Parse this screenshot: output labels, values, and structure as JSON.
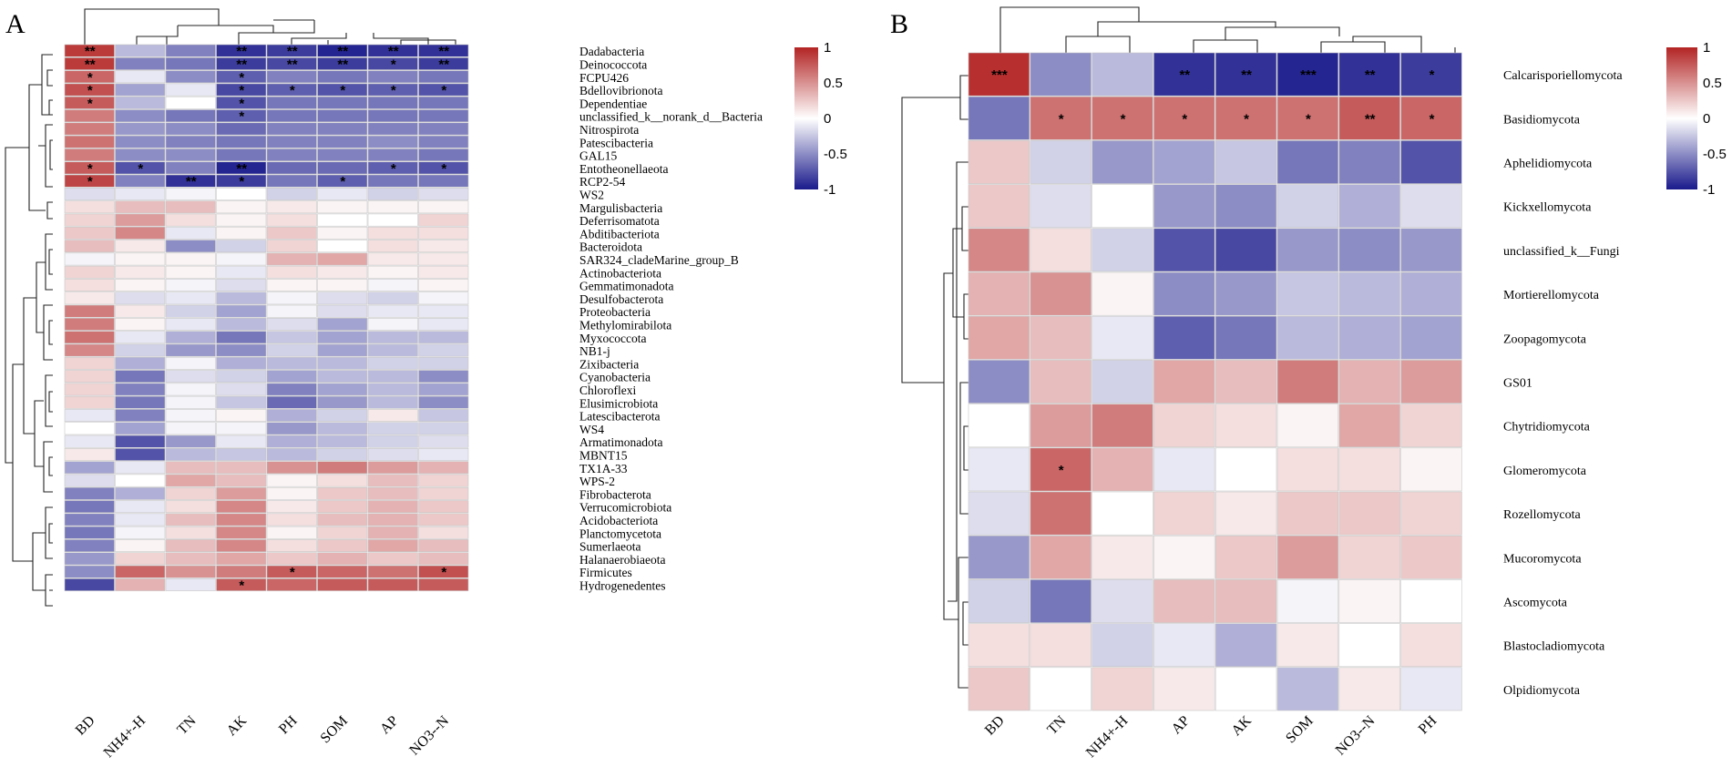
{
  "chart_data": [
    {
      "type": "heatmap",
      "panel_label": "A",
      "columns": [
        "BD",
        "NH4+-H",
        "TN",
        "AK",
        "PH",
        "SOM",
        "AP",
        "NO3--N"
      ],
      "rows": [
        "Dadabacteria",
        "Deinococcota",
        "FCPU426",
        "Bdellovibrionota",
        "Dependentiae",
        "unclassified_k__norank_d__Bacteria",
        "Nitrospirota",
        "Patescibacteria",
        "GAL15",
        "Entotheonellaeota",
        "RCP2-54",
        "WS2",
        "Margulisbacteria",
        "Deferrisomatota",
        "Abditibacteriota",
        "Bacteroidota",
        "SAR324_cladeMarine_group_B",
        "Actinobacteriota",
        "Gemmatimonadota",
        "Desulfobacterota",
        "Proteobacteria",
        "Methylomirabilota",
        "Myxococcota",
        "NB1-j",
        "Zixibacteria",
        "Cyanobacteria",
        "Chloroflexi",
        "Elusimicrobiota",
        "Latescibacterota",
        "WS4",
        "Armatimonadota",
        "MBNT15",
        "TX1A-33",
        "WPS-2",
        "Fibrobacterota",
        "Verrucomicrobiota",
        "Acidobacteriota",
        "Planctomycetota",
        "Sumerlaeota",
        "Halanaerobiaeota",
        "Firmicutes",
        "Hydrogenedentes"
      ],
      "values": [
        [
          0.9,
          -0.3,
          -0.55,
          -0.9,
          -0.85,
          -0.95,
          -0.9,
          -0.9
        ],
        [
          0.9,
          -0.55,
          -0.6,
          -0.85,
          -0.8,
          -0.85,
          -0.8,
          -0.85
        ],
        [
          0.7,
          -0.1,
          -0.5,
          -0.7,
          -0.55,
          -0.6,
          -0.55,
          -0.6
        ],
        [
          0.8,
          -0.4,
          -0.1,
          -0.8,
          -0.7,
          -0.75,
          -0.7,
          -0.75
        ],
        [
          0.75,
          -0.3,
          0.0,
          -0.75,
          -0.6,
          -0.6,
          -0.6,
          -0.6
        ],
        [
          0.6,
          -0.5,
          -0.6,
          -0.7,
          -0.6,
          -0.6,
          -0.6,
          -0.6
        ],
        [
          0.6,
          -0.45,
          -0.5,
          -0.65,
          -0.55,
          -0.55,
          -0.55,
          -0.55
        ],
        [
          0.65,
          -0.5,
          -0.55,
          -0.6,
          -0.55,
          -0.55,
          -0.5,
          -0.55
        ],
        [
          0.6,
          -0.5,
          -0.5,
          -0.6,
          -0.55,
          -0.55,
          -0.55,
          -0.6
        ],
        [
          0.75,
          -0.75,
          -0.55,
          -0.95,
          -0.65,
          -0.65,
          -0.7,
          -0.75
        ],
        [
          0.85,
          -0.55,
          -0.9,
          -0.85,
          -0.6,
          -0.7,
          -0.6,
          -0.6
        ],
        [
          -0.15,
          -0.1,
          -0.05,
          0.0,
          -0.2,
          -0.1,
          -0.2,
          -0.15
        ],
        [
          0.15,
          0.3,
          0.3,
          0.05,
          0.1,
          0.05,
          0.05,
          0.05
        ],
        [
          0.2,
          0.45,
          0.15,
          0.05,
          0.15,
          0.0,
          0.0,
          0.2
        ],
        [
          0.25,
          0.55,
          -0.1,
          0.05,
          0.25,
          0.05,
          0.15,
          0.15
        ],
        [
          0.3,
          0.1,
          -0.5,
          -0.2,
          0.2,
          0.0,
          0.15,
          0.1
        ],
        [
          -0.05,
          0.05,
          0.05,
          -0.05,
          0.35,
          0.4,
          0.1,
          0.1
        ],
        [
          0.2,
          0.1,
          0.05,
          -0.1,
          0.15,
          0.1,
          0.05,
          0.1
        ],
        [
          0.15,
          0.05,
          -0.05,
          -0.15,
          0.05,
          0.05,
          -0.05,
          0.05
        ],
        [
          0.1,
          -0.15,
          -0.1,
          -0.3,
          -0.05,
          -0.15,
          -0.2,
          -0.05
        ],
        [
          0.6,
          0.1,
          -0.2,
          -0.4,
          -0.05,
          -0.15,
          -0.1,
          -0.1
        ],
        [
          0.6,
          0.05,
          -0.1,
          -0.3,
          -0.15,
          -0.4,
          -0.05,
          -0.1
        ],
        [
          0.65,
          -0.1,
          -0.35,
          -0.6,
          -0.25,
          -0.4,
          -0.3,
          -0.3
        ],
        [
          0.55,
          -0.2,
          -0.45,
          -0.5,
          -0.2,
          -0.4,
          -0.3,
          -0.2
        ],
        [
          0.2,
          -0.35,
          -0.05,
          -0.35,
          -0.3,
          -0.3,
          -0.2,
          -0.2
        ],
        [
          0.2,
          -0.6,
          -0.15,
          -0.2,
          -0.4,
          -0.3,
          -0.3,
          -0.5
        ],
        [
          0.2,
          -0.55,
          -0.05,
          -0.15,
          -0.55,
          -0.4,
          -0.3,
          -0.4
        ],
        [
          0.2,
          -0.6,
          -0.05,
          -0.25,
          -0.65,
          -0.45,
          -0.3,
          -0.5
        ],
        [
          -0.1,
          -0.55,
          -0.05,
          0.05,
          -0.35,
          -0.2,
          0.1,
          -0.25
        ],
        [
          0.0,
          -0.4,
          -0.05,
          -0.05,
          -0.45,
          -0.3,
          -0.2,
          -0.2
        ],
        [
          -0.1,
          -0.75,
          -0.45,
          -0.1,
          -0.35,
          -0.3,
          -0.2,
          -0.15
        ],
        [
          0.1,
          -0.75,
          -0.3,
          -0.25,
          -0.3,
          -0.2,
          -0.15,
          -0.1
        ],
        [
          -0.4,
          -0.1,
          0.3,
          0.3,
          0.5,
          0.6,
          0.45,
          0.35
        ],
        [
          -0.15,
          0.0,
          0.4,
          0.3,
          0.05,
          0.15,
          0.3,
          0.2
        ],
        [
          -0.55,
          -0.35,
          0.2,
          0.45,
          0.05,
          0.25,
          0.3,
          0.2
        ],
        [
          -0.6,
          -0.1,
          0.15,
          0.55,
          0.1,
          0.25,
          0.35,
          0.25
        ],
        [
          -0.55,
          -0.1,
          0.3,
          0.55,
          0.15,
          0.3,
          0.35,
          0.25
        ],
        [
          -0.6,
          -0.05,
          0.15,
          0.55,
          0.05,
          0.2,
          0.35,
          0.15
        ],
        [
          -0.55,
          0.05,
          0.3,
          0.55,
          0.15,
          0.25,
          0.4,
          0.3
        ],
        [
          -0.45,
          0.2,
          0.3,
          0.4,
          0.25,
          0.35,
          0.25,
          0.3
        ],
        [
          -0.5,
          0.7,
          0.5,
          0.6,
          0.75,
          0.7,
          0.65,
          0.8
        ],
        [
          -0.8,
          0.35,
          -0.1,
          0.75,
          0.7,
          0.75,
          0.75,
          0.75
        ]
      ],
      "significance": [
        [
          "**",
          "",
          "",
          "**",
          "**",
          "**",
          "**",
          "**"
        ],
        [
          "**",
          "",
          "",
          "**",
          "**",
          "**",
          "*",
          "**"
        ],
        [
          "*",
          "",
          "",
          "*",
          "",
          "",
          "",
          ""
        ],
        [
          "*",
          "",
          "",
          "*",
          "*",
          "*",
          "*",
          "*"
        ],
        [
          "*",
          "",
          "",
          "*",
          "",
          "",
          "",
          ""
        ],
        [
          "",
          "",
          "",
          "*",
          "",
          "",
          "",
          ""
        ],
        [
          "",
          "",
          "",
          "",
          "",
          "",
          "",
          ""
        ],
        [
          "",
          "",
          "",
          "",
          "",
          "",
          "",
          ""
        ],
        [
          "",
          "",
          "",
          "",
          "",
          "",
          "",
          ""
        ],
        [
          "*",
          "*",
          "",
          "**",
          "",
          "",
          "*",
          "*"
        ],
        [
          "*",
          "",
          "**",
          "*",
          "",
          "*",
          "",
          ""
        ],
        [
          "",
          "",
          "",
          "",
          "",
          "",
          "",
          ""
        ],
        [
          "",
          "",
          "",
          "",
          "",
          "",
          "",
          ""
        ],
        [
          "",
          "",
          "",
          "",
          "",
          "",
          "",
          ""
        ],
        [
          "",
          "",
          "",
          "",
          "",
          "",
          "",
          ""
        ],
        [
          "",
          "",
          "",
          "",
          "",
          "",
          "",
          ""
        ],
        [
          "",
          "",
          "",
          "",
          "",
          "",
          "",
          ""
        ],
        [
          "",
          "",
          "",
          "",
          "",
          "",
          "",
          ""
        ],
        [
          "",
          "",
          "",
          "",
          "",
          "",
          "",
          ""
        ],
        [
          "",
          "",
          "",
          "",
          "",
          "",
          "",
          ""
        ],
        [
          "",
          "",
          "",
          "",
          "",
          "",
          "",
          ""
        ],
        [
          "",
          "",
          "",
          "",
          "",
          "",
          "",
          ""
        ],
        [
          "",
          "",
          "",
          "",
          "",
          "",
          "",
          ""
        ],
        [
          "",
          "",
          "",
          "",
          "",
          "",
          "",
          ""
        ],
        [
          "",
          "",
          "",
          "",
          "",
          "",
          "",
          ""
        ],
        [
          "",
          "",
          "",
          "",
          "",
          "",
          "",
          ""
        ],
        [
          "",
          "",
          "",
          "",
          "",
          "",
          "",
          ""
        ],
        [
          "",
          "",
          "",
          "",
          "",
          "",
          "",
          ""
        ],
        [
          "",
          "",
          "",
          "",
          "",
          "",
          "",
          ""
        ],
        [
          "",
          "",
          "",
          "",
          "",
          "",
          "",
          ""
        ],
        [
          "",
          "",
          "",
          "",
          "",
          "",
          "",
          ""
        ],
        [
          "",
          "",
          "",
          "",
          "",
          "",
          "",
          ""
        ],
        [
          "",
          "",
          "",
          "",
          "",
          "",
          "",
          ""
        ],
        [
          "",
          "",
          "",
          "",
          "",
          "",
          "",
          ""
        ],
        [
          "",
          "",
          "",
          "",
          "",
          "",
          "",
          ""
        ],
        [
          "",
          "",
          "",
          "",
          "",
          "",
          "",
          ""
        ],
        [
          "",
          "",
          "",
          "",
          "",
          "",
          "",
          ""
        ],
        [
          "",
          "",
          "",
          "",
          "",
          "",
          "",
          ""
        ],
        [
          "",
          "",
          "",
          "",
          "",
          "",
          "",
          ""
        ],
        [
          "",
          "",
          "",
          "",
          "",
          "",
          "",
          ""
        ],
        [
          "",
          "",
          "",
          "",
          "*",
          "",
          "",
          "*"
        ],
        [
          "",
          "",
          "",
          "*",
          "",
          "",
          "",
          ""
        ]
      ],
      "color_scale": {
        "min": -1,
        "max": 1,
        "low": "#1a1a8c",
        "mid": "#ffffff",
        "high": "#b32424"
      },
      "legend_ticks": [
        "1",
        "0.5",
        "0",
        "-0.5",
        "-1"
      ]
    },
    {
      "type": "heatmap",
      "panel_label": "B",
      "columns": [
        "BD",
        "TN",
        "NH4+-H",
        "AP",
        "AK",
        "SOM",
        "NO3--N",
        "PH"
      ],
      "rows": [
        "Calcarisporiellomycota",
        "Basidiomycota",
        "Aphelidiomycota",
        "Kickxellomycota",
        "unclassified_k__Fungi",
        "Mortierellomycota",
        "Zoopagomycota",
        "GS01",
        "Chytridiomycota",
        "Glomeromycota",
        "Rozellomycota",
        "Mucoromycota",
        "Ascomycota",
        "Blastocladiomycota",
        "Olpidiomycota"
      ],
      "values": [
        [
          0.95,
          -0.5,
          -0.3,
          -0.9,
          -0.9,
          -0.95,
          -0.9,
          -0.85
        ],
        [
          -0.6,
          0.65,
          0.65,
          0.65,
          0.65,
          0.65,
          0.75,
          0.7
        ],
        [
          0.25,
          -0.2,
          -0.45,
          -0.4,
          -0.25,
          -0.6,
          -0.55,
          -0.75
        ],
        [
          0.25,
          -0.15,
          0.0,
          -0.45,
          -0.5,
          -0.2,
          -0.35,
          -0.15
        ],
        [
          0.55,
          0.15,
          -0.2,
          -0.75,
          -0.8,
          -0.45,
          -0.5,
          -0.45
        ],
        [
          0.35,
          0.5,
          0.05,
          -0.5,
          -0.45,
          -0.25,
          -0.3,
          -0.35
        ],
        [
          0.4,
          0.3,
          -0.1,
          -0.7,
          -0.6,
          -0.3,
          -0.35,
          -0.4
        ],
        [
          -0.5,
          0.3,
          -0.2,
          0.4,
          0.3,
          0.6,
          0.35,
          0.45
        ],
        [
          0.0,
          0.45,
          0.6,
          0.2,
          0.15,
          0.05,
          0.4,
          0.2
        ],
        [
          -0.1,
          0.7,
          0.35,
          -0.1,
          0.0,
          0.15,
          0.15,
          0.05
        ],
        [
          -0.15,
          0.65,
          0.0,
          0.2,
          0.1,
          0.25,
          0.25,
          0.2
        ],
        [
          -0.45,
          0.4,
          0.1,
          0.05,
          0.25,
          0.45,
          0.2,
          0.25
        ],
        [
          -0.2,
          -0.6,
          -0.15,
          0.3,
          0.3,
          -0.05,
          0.05,
          0.0
        ],
        [
          0.15,
          0.15,
          -0.2,
          -0.1,
          -0.35,
          0.1,
          0.0,
          0.15
        ],
        [
          0.25,
          0.0,
          0.2,
          0.1,
          0.0,
          -0.3,
          0.1,
          -0.1
        ]
      ],
      "significance": [
        [
          "***",
          "",
          "",
          "**",
          "**",
          "***",
          "**",
          "*"
        ],
        [
          "",
          "*",
          "*",
          "*",
          "*",
          "*",
          "**",
          "*"
        ],
        [
          "",
          "",
          "",
          "",
          "",
          "",
          "",
          ""
        ],
        [
          "",
          "",
          "",
          "",
          "",
          "",
          "",
          ""
        ],
        [
          "",
          "",
          "",
          "",
          "",
          "",
          "",
          ""
        ],
        [
          "",
          "",
          "",
          "",
          "",
          "",
          "",
          ""
        ],
        [
          "",
          "",
          "",
          "",
          "",
          "",
          "",
          ""
        ],
        [
          "",
          "",
          "",
          "",
          "",
          "",
          "",
          ""
        ],
        [
          "",
          "",
          "",
          "",
          "",
          "",
          "",
          ""
        ],
        [
          "",
          "*",
          "",
          "",
          "",
          "",
          "",
          ""
        ],
        [
          "",
          "",
          "",
          "",
          "",
          "",
          "",
          ""
        ],
        [
          "",
          "",
          "",
          "",
          "",
          "",
          "",
          ""
        ],
        [
          "",
          "",
          "",
          "",
          "",
          "",
          "",
          ""
        ],
        [
          "",
          "",
          "",
          "",
          "",
          "",
          "",
          ""
        ],
        [
          "",
          "",
          "",
          "",
          "",
          "",
          "",
          ""
        ]
      ],
      "color_scale": {
        "min": -1,
        "max": 1,
        "low": "#1a1a8c",
        "mid": "#ffffff",
        "high": "#b32424"
      },
      "legend_ticks": [
        "1",
        "0.5",
        "0",
        "-0.5",
        "-1"
      ]
    }
  ]
}
